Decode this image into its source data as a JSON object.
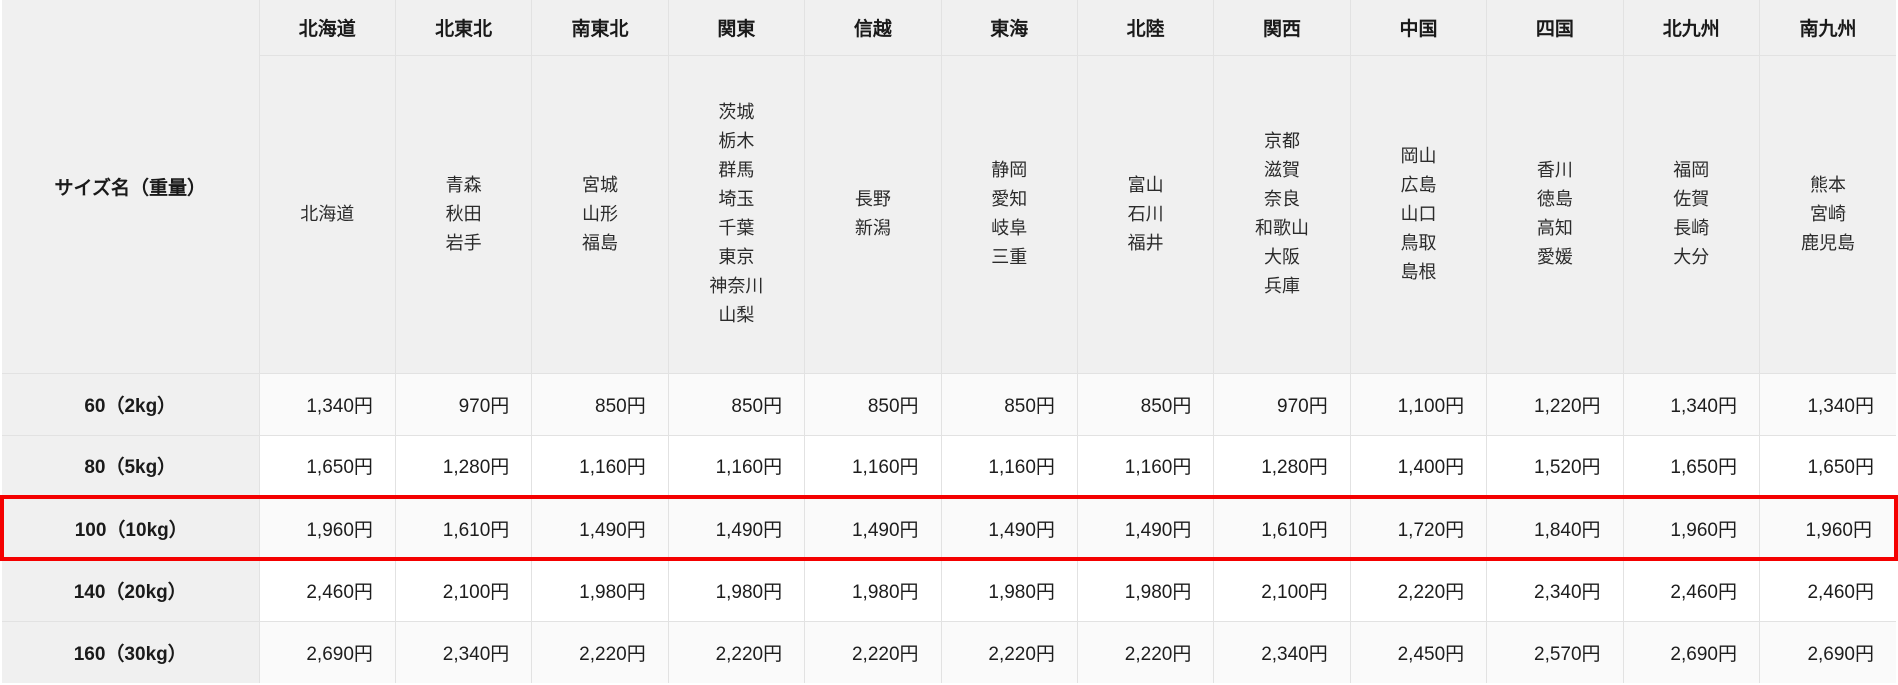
{
  "chart_data": {
    "type": "table",
    "corner_label": "サイズ名（重量）",
    "columns": [
      {
        "region": "北海道",
        "prefectures": [
          "北海道"
        ]
      },
      {
        "region": "北東北",
        "prefectures": [
          "青森",
          "秋田",
          "岩手"
        ]
      },
      {
        "region": "南東北",
        "prefectures": [
          "宮城",
          "山形",
          "福島"
        ]
      },
      {
        "region": "関東",
        "prefectures": [
          "茨城",
          "栃木",
          "群馬",
          "埼玉",
          "千葉",
          "東京",
          "神奈川",
          "山梨"
        ]
      },
      {
        "region": "信越",
        "prefectures": [
          "長野",
          "新潟"
        ]
      },
      {
        "region": "東海",
        "prefectures": [
          "静岡",
          "愛知",
          "岐阜",
          "三重"
        ]
      },
      {
        "region": "北陸",
        "prefectures": [
          "富山",
          "石川",
          "福井"
        ]
      },
      {
        "region": "関西",
        "prefectures": [
          "京都",
          "滋賀",
          "奈良",
          "和歌山",
          "大阪",
          "兵庫"
        ]
      },
      {
        "region": "中国",
        "prefectures": [
          "岡山",
          "広島",
          "山口",
          "鳥取",
          "島根"
        ]
      },
      {
        "region": "四国",
        "prefectures": [
          "香川",
          "徳島",
          "高知",
          "愛媛"
        ]
      },
      {
        "region": "北九州",
        "prefectures": [
          "福岡",
          "佐賀",
          "長崎",
          "大分"
        ]
      },
      {
        "region": "南九州",
        "prefectures": [
          "熊本",
          "宮崎",
          "鹿児島"
        ]
      }
    ],
    "rows": [
      {
        "size": "60（2kg）",
        "highlighted": false,
        "prices": [
          "1,340円",
          "970円",
          "850円",
          "850円",
          "850円",
          "850円",
          "850円",
          "970円",
          "1,100円",
          "1,220円",
          "1,340円",
          "1,340円"
        ]
      },
      {
        "size": "80（5kg）",
        "highlighted": false,
        "prices": [
          "1,650円",
          "1,280円",
          "1,160円",
          "1,160円",
          "1,160円",
          "1,160円",
          "1,160円",
          "1,280円",
          "1,400円",
          "1,520円",
          "1,650円",
          "1,650円"
        ]
      },
      {
        "size": "100（10kg）",
        "highlighted": true,
        "prices": [
          "1,960円",
          "1,610円",
          "1,490円",
          "1,490円",
          "1,490円",
          "1,490円",
          "1,490円",
          "1,610円",
          "1,720円",
          "1,840円",
          "1,960円",
          "1,960円"
        ]
      },
      {
        "size": "140（20kg）",
        "highlighted": false,
        "prices": [
          "2,460円",
          "2,100円",
          "1,980円",
          "1,980円",
          "1,980円",
          "1,980円",
          "1,980円",
          "2,100円",
          "2,220円",
          "2,340円",
          "2,460円",
          "2,460円"
        ]
      },
      {
        "size": "160（30kg）",
        "highlighted": false,
        "prices": [
          "2,690円",
          "2,340円",
          "2,220円",
          "2,220円",
          "2,220円",
          "2,220円",
          "2,220円",
          "2,340円",
          "2,450円",
          "2,570円",
          "2,690円",
          "2,690円"
        ]
      }
    ],
    "colors": {
      "header_bg": "#f0f0f0",
      "row_bg": "#ffffff",
      "row_alt_bg": "#fafafa",
      "grid": "#e2e2e2",
      "highlight_border": "#f40000",
      "text": "#1d1d1d"
    },
    "layout_hints": {
      "grid": true,
      "price_alignment": "right",
      "highlighted_row_label": "100（10kg）"
    }
  }
}
